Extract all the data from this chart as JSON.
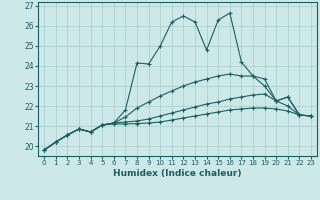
{
  "xlabel": "Humidex (Indice chaleur)",
  "background_color": "#cde8e8",
  "line_color": "#1a6060",
  "grid_color": "#aacccc",
  "xlim": [
    -0.5,
    23.5
  ],
  "ylim": [
    19.5,
    27.2
  ],
  "yticks": [
    20,
    21,
    22,
    23,
    24,
    25,
    26,
    27
  ],
  "xticks": [
    0,
    1,
    2,
    3,
    4,
    5,
    6,
    7,
    8,
    9,
    10,
    11,
    12,
    13,
    14,
    15,
    16,
    17,
    18,
    19,
    20,
    21,
    22,
    23
  ],
  "lines": [
    {
      "x": [
        0,
        1,
        2,
        3,
        4,
        5,
        6,
        7,
        8,
        9,
        10,
        11,
        12,
        13,
        14,
        15,
        16,
        17,
        18,
        19,
        20,
        21,
        22,
        23
      ],
      "y": [
        19.8,
        20.2,
        20.55,
        20.85,
        20.7,
        21.05,
        21.15,
        21.8,
        24.15,
        24.1,
        25.0,
        26.2,
        26.5,
        26.2,
        24.8,
        26.3,
        26.65,
        24.2,
        23.5,
        23.35,
        22.25,
        22.45,
        21.55,
        21.5
      ]
    },
    {
      "x": [
        0,
        1,
        2,
        3,
        4,
        5,
        6,
        7,
        8,
        9,
        10,
        11,
        12,
        13,
        14,
        15,
        16,
        17,
        18,
        19,
        20,
        21,
        22,
        23
      ],
      "y": [
        19.8,
        20.2,
        20.55,
        20.85,
        20.7,
        21.05,
        21.15,
        21.45,
        21.9,
        22.2,
        22.5,
        22.75,
        23.0,
        23.2,
        23.35,
        23.5,
        23.6,
        23.5,
        23.5,
        23.0,
        22.25,
        22.45,
        21.55,
        21.5
      ]
    },
    {
      "x": [
        0,
        1,
        2,
        3,
        4,
        5,
        6,
        7,
        8,
        9,
        10,
        11,
        12,
        13,
        14,
        15,
        16,
        17,
        18,
        19,
        20,
        21,
        22,
        23
      ],
      "y": [
        19.8,
        20.2,
        20.55,
        20.85,
        20.7,
        21.05,
        21.15,
        21.2,
        21.25,
        21.35,
        21.5,
        21.65,
        21.8,
        21.95,
        22.1,
        22.2,
        22.35,
        22.45,
        22.55,
        22.6,
        22.25,
        22.0,
        21.55,
        21.5
      ]
    },
    {
      "x": [
        0,
        1,
        2,
        3,
        4,
        5,
        6,
        7,
        8,
        9,
        10,
        11,
        12,
        13,
        14,
        15,
        16,
        17,
        18,
        19,
        20,
        21,
        22,
        23
      ],
      "y": [
        19.8,
        20.2,
        20.55,
        20.85,
        20.7,
        21.05,
        21.1,
        21.1,
        21.12,
        21.15,
        21.2,
        21.3,
        21.4,
        21.5,
        21.6,
        21.7,
        21.8,
        21.85,
        21.9,
        21.9,
        21.85,
        21.75,
        21.55,
        21.5
      ]
    }
  ]
}
